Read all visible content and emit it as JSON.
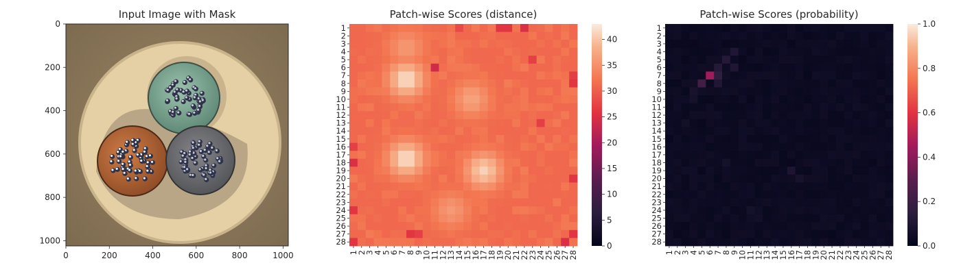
{
  "chart_data": [
    {
      "type": "image",
      "title": "Input Image with Mask",
      "xlim": [
        0,
        1024
      ],
      "ylim": [
        1024,
        0
      ],
      "x_ticks": [
        0,
        200,
        400,
        600,
        800,
        1000
      ],
      "y_ticks": [
        0,
        200,
        400,
        600,
        800,
        1000
      ],
      "content": "cable cross-section: three conductors (green, brown, grey) inside a beige sheath",
      "colors": {
        "background": "#8c7a5c",
        "sheath": "#e6d2a6",
        "inner": "#b8a585",
        "green": "#7fa68f",
        "brown": "#b8693a",
        "grey": "#6e6e70",
        "wire": "#3a3e55"
      }
    },
    {
      "type": "heatmap",
      "title": "Patch-wise Scores (distance)",
      "rows": 28,
      "cols": 28,
      "x_ticks": [
        "1",
        "2",
        "3",
        "4",
        "5",
        "6",
        "7",
        "8",
        "9",
        "10",
        "11",
        "12",
        "13",
        "14",
        "15",
        "16",
        "17",
        "18",
        "19",
        "20",
        "21",
        "22",
        "23",
        "24",
        "25",
        "26",
        "27",
        "28"
      ],
      "y_ticks": [
        "1",
        "2",
        "3",
        "4",
        "5",
        "6",
        "7",
        "8",
        "9",
        "10",
        "11",
        "12",
        "13",
        "14",
        "15",
        "16",
        "17",
        "18",
        "19",
        "20",
        "21",
        "22",
        "23",
        "24",
        "25",
        "26",
        "27",
        "28"
      ],
      "colorbar": {
        "range": [
          0,
          43
        ],
        "ticks": [
          0,
          5,
          10,
          15,
          20,
          25,
          30,
          35,
          40
        ]
      },
      "colormap": "rocket",
      "base_value": 31,
      "hotspots": [
        {
          "row": 7.5,
          "col": 7.5,
          "peak": 42
        },
        {
          "row": 17.5,
          "col": 7.5,
          "peak": 42
        },
        {
          "row": 10,
          "col": 15.5,
          "peak": 37
        },
        {
          "row": 19,
          "col": 17,
          "peak": 41
        },
        {
          "row": 3.5,
          "col": 7.5,
          "peak": 36
        },
        {
          "row": 24,
          "col": 13,
          "peak": 36
        }
      ],
      "low_cells": [
        {
          "row": 1,
          "col": 19,
          "value": 26
        },
        {
          "row": 1,
          "col": 20,
          "value": 26
        },
        {
          "row": 1,
          "col": 22,
          "value": 25
        },
        {
          "row": 6,
          "col": 11,
          "value": 24
        },
        {
          "row": 1,
          "col": 14,
          "value": 28
        },
        {
          "row": 13,
          "col": 24,
          "value": 27
        },
        {
          "row": 8,
          "col": 28,
          "value": 26
        },
        {
          "row": 7,
          "col": 28,
          "value": 27
        },
        {
          "row": 18,
          "col": 1,
          "value": 25
        },
        {
          "row": 16,
          "col": 1,
          "value": 27
        },
        {
          "row": 20,
          "col": 28,
          "value": 26
        },
        {
          "row": 27,
          "col": 28,
          "value": 26
        },
        {
          "row": 28,
          "col": 1,
          "value": 26
        },
        {
          "row": 28,
          "col": 27,
          "value": 25
        },
        {
          "row": 24,
          "col": 1,
          "value": 26
        },
        {
          "row": 27,
          "col": 8,
          "value": 26
        },
        {
          "row": 27,
          "col": 9,
          "value": 27
        },
        {
          "row": 5,
          "col": 23,
          "value": 27
        }
      ]
    },
    {
      "type": "heatmap",
      "title": "Patch-wise Scores (probability)",
      "rows": 28,
      "cols": 28,
      "x_ticks": [
        "1",
        "2",
        "3",
        "4",
        "5",
        "6",
        "7",
        "8",
        "9",
        "10",
        "11",
        "12",
        "13",
        "14",
        "15",
        "16",
        "17",
        "18",
        "19",
        "20",
        "21",
        "22",
        "23",
        "24",
        "25",
        "26",
        "27",
        "28"
      ],
      "y_ticks": [
        "1",
        "2",
        "3",
        "4",
        "5",
        "6",
        "7",
        "8",
        "9",
        "10",
        "11",
        "12",
        "13",
        "14",
        "15",
        "16",
        "17",
        "18",
        "19",
        "20",
        "21",
        "22",
        "23",
        "24",
        "25",
        "26",
        "27",
        "28"
      ],
      "colorbar": {
        "range": [
          0,
          1
        ],
        "ticks": [
          "0.0",
          "0.2",
          "0.4",
          "0.6",
          "0.8",
          "1.0"
        ]
      },
      "colormap": "rocket",
      "base_value": 0.02,
      "hotspots": [
        {
          "row": 7,
          "col": 6,
          "value": 0.45
        },
        {
          "row": 8,
          "col": 5,
          "value": 0.22
        },
        {
          "row": 7,
          "col": 7,
          "value": 0.16
        },
        {
          "row": 6,
          "col": 7,
          "value": 0.12
        },
        {
          "row": 5,
          "col": 8,
          "value": 0.12
        },
        {
          "row": 4,
          "col": 9,
          "value": 0.1
        },
        {
          "row": 6,
          "col": 9,
          "value": 0.1
        },
        {
          "row": 8,
          "col": 7,
          "value": 0.11
        },
        {
          "row": 9,
          "col": 4,
          "value": 0.08
        },
        {
          "row": 10,
          "col": 4,
          "value": 0.07
        },
        {
          "row": 19,
          "col": 16,
          "value": 0.09
        },
        {
          "row": 20,
          "col": 17,
          "value": 0.08
        },
        {
          "row": 18,
          "col": 8,
          "value": 0.07
        },
        {
          "row": 24,
          "col": 11,
          "value": 0.07
        },
        {
          "row": 13,
          "col": 3,
          "value": 0.06
        },
        {
          "row": 14,
          "col": 14,
          "value": 0.05
        },
        {
          "row": 25,
          "col": 12,
          "value": 0.06
        },
        {
          "row": 19,
          "col": 6,
          "value": 0.05
        }
      ]
    }
  ]
}
